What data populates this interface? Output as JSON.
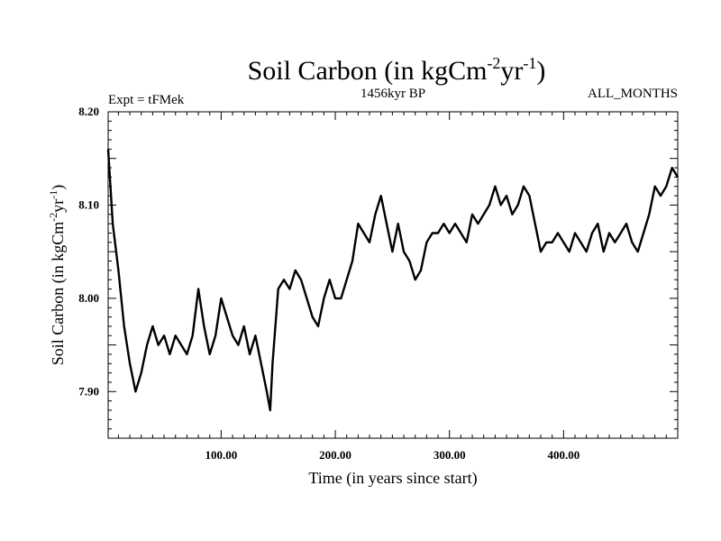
{
  "chart_data": {
    "type": "line",
    "title": "Soil Carbon (in kgCm",
    "title_sup1": "-2",
    "title_mid": "yr",
    "title_sup2": "-1",
    "title_end": ")",
    "subtitle_left": "Expt = tFMek",
    "subtitle_center": "1456kyr BP",
    "subtitle_right": "ALL_MONTHS",
    "xlabel": "Time (in years since start)",
    "ylabel": "Soil Carbon (in kgCm",
    "ylabel_sup1": "-2",
    "ylabel_mid": "yr",
    "ylabel_sup2": "-1",
    "ylabel_end": ")",
    "xlim": [
      1,
      500
    ],
    "ylim": [
      7.85,
      8.2
    ],
    "x_ticks": [
      100,
      200,
      300,
      400
    ],
    "x_tick_labels": [
      "100.00",
      "200.00",
      "300.00",
      "400.00"
    ],
    "y_ticks": [
      7.9,
      8.0,
      8.1,
      8.2
    ],
    "y_tick_labels": [
      "7.90",
      "8.00",
      "8.10",
      "8.20"
    ],
    "grid": false,
    "line_color": "#000000",
    "series": [
      {
        "x": [
          1,
          5,
          10,
          15,
          20,
          25,
          30,
          35,
          40,
          45,
          50,
          55,
          60,
          65,
          70,
          75,
          80,
          85,
          90,
          95,
          100,
          105,
          110,
          115,
          120,
          125,
          130,
          135,
          140,
          143,
          145,
          150,
          155,
          160,
          165,
          170,
          175,
          180,
          185,
          190,
          195,
          200,
          205,
          210,
          215,
          220,
          225,
          230,
          235,
          240,
          245,
          250,
          255,
          260,
          265,
          270,
          275,
          280,
          285,
          290,
          295,
          300,
          305,
          310,
          315,
          320,
          325,
          330,
          335,
          340,
          345,
          350,
          355,
          360,
          365,
          370,
          375,
          380,
          385,
          390,
          395,
          400,
          405,
          410,
          415,
          420,
          425,
          430,
          435,
          440,
          445,
          450,
          455,
          460,
          465,
          470,
          475,
          480,
          485,
          490,
          495,
          500
        ],
        "values": [
          8.16,
          8.08,
          8.03,
          7.97,
          7.93,
          7.9,
          7.92,
          7.95,
          7.97,
          7.95,
          7.96,
          7.94,
          7.96,
          7.95,
          7.94,
          7.96,
          8.01,
          7.97,
          7.94,
          7.96,
          8.0,
          7.98,
          7.96,
          7.95,
          7.97,
          7.94,
          7.96,
          7.93,
          7.9,
          7.88,
          7.93,
          8.01,
          8.02,
          8.01,
          8.03,
          8.02,
          8.0,
          7.98,
          7.97,
          8.0,
          8.02,
          8.0,
          8.0,
          8.02,
          8.04,
          8.08,
          8.07,
          8.06,
          8.09,
          8.11,
          8.08,
          8.05,
          8.08,
          8.05,
          8.04,
          8.02,
          8.03,
          8.06,
          8.07,
          8.07,
          8.08,
          8.07,
          8.08,
          8.07,
          8.06,
          8.09,
          8.08,
          8.09,
          8.1,
          8.12,
          8.1,
          8.11,
          8.09,
          8.1,
          8.12,
          8.11,
          8.08,
          8.05,
          8.06,
          8.06,
          8.07,
          8.06,
          8.05,
          8.07,
          8.06,
          8.05,
          8.07,
          8.08,
          8.05,
          8.07,
          8.06,
          8.07,
          8.08,
          8.06,
          8.05,
          8.07,
          8.09,
          8.12,
          8.11,
          8.12,
          8.14,
          8.13
        ]
      }
    ]
  }
}
